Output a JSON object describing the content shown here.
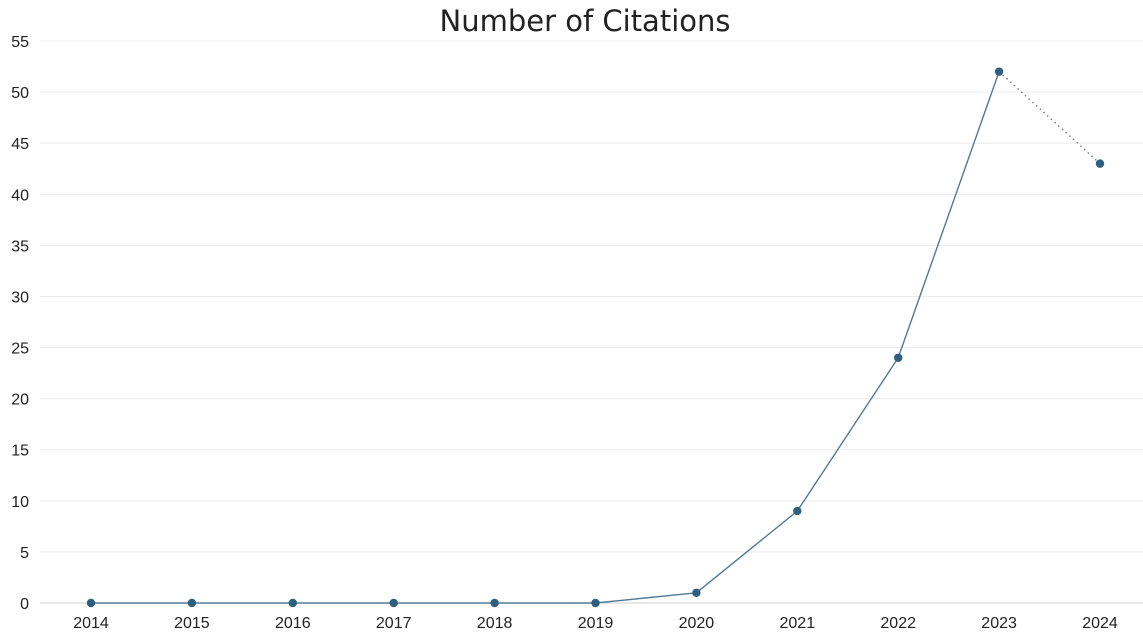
{
  "chart_data": {
    "type": "line",
    "title": "Number of Citations",
    "xlabel": "",
    "ylabel": "",
    "x": [
      "2014",
      "2015",
      "2016",
      "2017",
      "2018",
      "2019",
      "2020",
      "2021",
      "2022",
      "2023",
      "2024"
    ],
    "series": [
      {
        "values": [
          0,
          0,
          0,
          0,
          0,
          0,
          1,
          9,
          24,
          52,
          43
        ]
      }
    ],
    "dotted_segment_from_index": 9,
    "ylim": [
      0,
      55
    ],
    "yticks": [
      0,
      5,
      10,
      15,
      20,
      25,
      30,
      35,
      40,
      45,
      50,
      55
    ],
    "grid": true,
    "legend": "none",
    "colors": {
      "line": "#537a95",
      "marker": "#2f5f80",
      "dotted": "#777777"
    }
  }
}
